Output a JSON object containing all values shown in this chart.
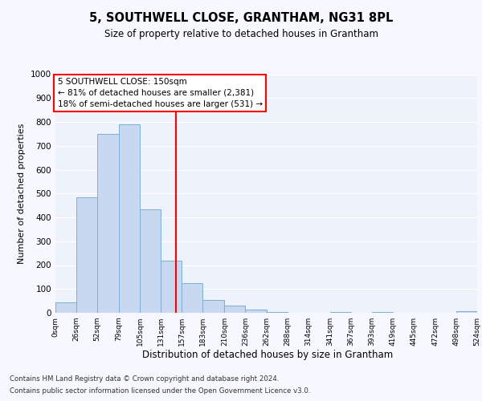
{
  "title": "5, SOUTHWELL CLOSE, GRANTHAM, NG31 8PL",
  "subtitle": "Size of property relative to detached houses in Grantham",
  "xlabel": "Distribution of detached houses by size in Grantham",
  "ylabel": "Number of detached properties",
  "bar_edges": [
    0,
    26,
    52,
    79,
    105,
    131,
    157,
    183,
    210,
    236,
    262,
    288,
    314,
    341,
    367,
    393,
    419,
    445,
    472,
    498,
    524
  ],
  "bar_heights": [
    45,
    485,
    750,
    790,
    435,
    220,
    125,
    55,
    30,
    15,
    5,
    0,
    0,
    5,
    0,
    5,
    0,
    0,
    0,
    8
  ],
  "bar_color": "#c8d8f0",
  "bar_edge_color": "#7aafd4",
  "property_line_x": 150,
  "property_line_color": "red",
  "annotation_title": "5 SOUTHWELL CLOSE: 150sqm",
  "annotation_line1": "← 81% of detached houses are smaller (2,381)",
  "annotation_line2": "18% of semi-detached houses are larger (531) →",
  "xlim": [
    0,
    524
  ],
  "ylim": [
    0,
    1000
  ],
  "yticks": [
    0,
    100,
    200,
    300,
    400,
    500,
    600,
    700,
    800,
    900,
    1000
  ],
  "xtick_labels": [
    "0sqm",
    "26sqm",
    "52sqm",
    "79sqm",
    "105sqm",
    "131sqm",
    "157sqm",
    "183sqm",
    "210sqm",
    "236sqm",
    "262sqm",
    "288sqm",
    "314sqm",
    "341sqm",
    "367sqm",
    "393sqm",
    "419sqm",
    "445sqm",
    "472sqm",
    "498sqm",
    "524sqm"
  ],
  "xtick_positions": [
    0,
    26,
    52,
    79,
    105,
    131,
    157,
    183,
    210,
    236,
    262,
    288,
    314,
    341,
    367,
    393,
    419,
    445,
    472,
    498,
    524
  ],
  "background_color": "#eef2fb",
  "grid_color": "#ffffff",
  "fig_background": "#f7f7ff",
  "footer_line1": "Contains HM Land Registry data © Crown copyright and database right 2024.",
  "footer_line2": "Contains public sector information licensed under the Open Government Licence v3.0."
}
